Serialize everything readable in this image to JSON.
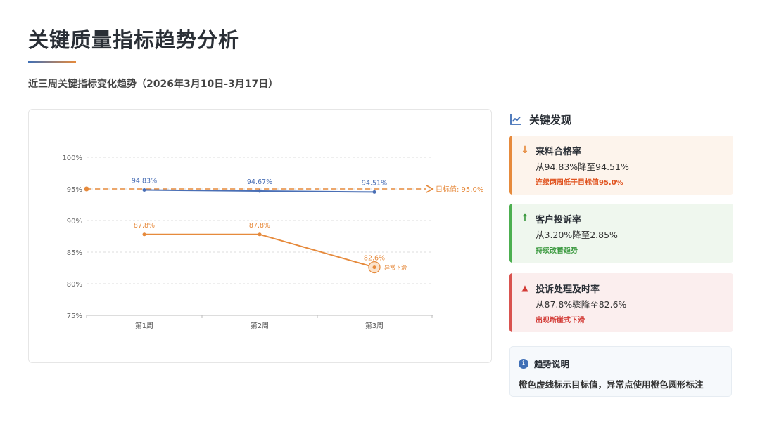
{
  "page": {
    "title": "关键质量指标趋势分析",
    "subtitle": "近三周关键指标变化趋势（2026年3月10日-3月17日）"
  },
  "chart_data": {
    "type": "line",
    "categories": [
      "第1周",
      "第2周",
      "第3周"
    ],
    "ylim": [
      75,
      100
    ],
    "yticks": [
      "75%",
      "80%",
      "85%",
      "90%",
      "95%",
      "100%"
    ],
    "grid": true,
    "series": [
      {
        "values": [
          94.83,
          94.67,
          94.51
        ],
        "labels": [
          "94.83%",
          "94.67%",
          "94.51%"
        ],
        "color": "#4a6fb5"
      },
      {
        "values": [
          87.8,
          87.8,
          82.6
        ],
        "labels": [
          "87.8%",
          "87.8%",
          "82.6%"
        ],
        "color": "#e68a3c"
      }
    ],
    "target": {
      "value": 95.0,
      "label": "目标值: 95.0%",
      "color": "#e68a3c"
    },
    "annotation": {
      "series": 1,
      "point": 2,
      "label": "异常下滑",
      "color": "#e68a3c"
    }
  },
  "panel": {
    "heading": "关键发现",
    "heading_icon": "trend-chart-icon",
    "findings": [
      {
        "icon": "arrow-down-icon",
        "glyph": "↓",
        "title": "来料合格率",
        "desc": "从94.83%降至94.51%",
        "note": "连续两周低于目标值95.0%",
        "color": "#e68a3c",
        "note_color": "#e0531f"
      },
      {
        "icon": "arrow-up-icon",
        "glyph": "↑",
        "title": "客户投诉率",
        "desc": "从3.20%降至2.85%",
        "note": "持续改善趋势",
        "color": "#3c9a40",
        "note_color": "#3c9a40"
      },
      {
        "icon": "warning-icon",
        "glyph": "▲",
        "title": "投诉处理及时率",
        "desc": "从87.8%骤降至82.6%",
        "note": "出现断崖式下滑",
        "color": "#d33b36",
        "note_color": "#d33b36"
      }
    ],
    "info": {
      "icon": "info-icon",
      "glyph": "i",
      "title": "趋势说明",
      "desc": "橙色虚线标示目标值，异常点使用橙色圆形标注"
    }
  }
}
